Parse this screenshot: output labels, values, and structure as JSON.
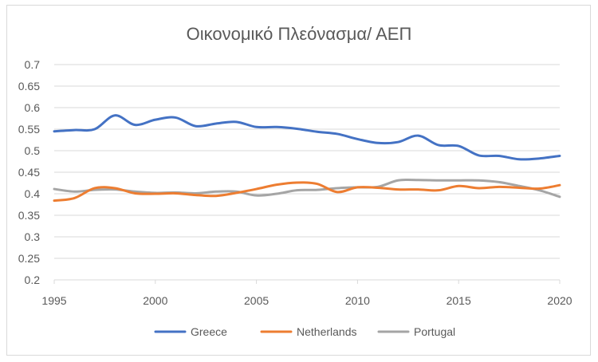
{
  "chart_data": {
    "type": "line",
    "title": "Οικονομικό Πλεόνασμα/ ΑΕΠ",
    "xlabel": "",
    "ylabel": "",
    "xlim": [
      1995,
      2020
    ],
    "ylim": [
      0.2,
      0.7
    ],
    "x_ticks": [
      "1995",
      "2000",
      "2005",
      "2010",
      "2015",
      "2020"
    ],
    "y_ticks": [
      "0.7",
      "0.65",
      "0.6",
      "0.55",
      "0.5",
      "0.45",
      "0.4",
      "0.35",
      "0.3",
      "0.25",
      "0.2"
    ],
    "grid": "horizontal",
    "legend_position": "bottom",
    "x": [
      1995,
      1996,
      1997,
      1998,
      1999,
      2000,
      2001,
      2002,
      2003,
      2004,
      2005,
      2006,
      2007,
      2008,
      2009,
      2010,
      2011,
      2012,
      2013,
      2014,
      2015,
      2016,
      2017,
      2018,
      2019,
      2020
    ],
    "series": [
      {
        "name": "Greece",
        "color": "#4472c4",
        "values": [
          0.545,
          0.548,
          0.55,
          0.582,
          0.56,
          0.572,
          0.577,
          0.557,
          0.563,
          0.567,
          0.555,
          0.555,
          0.551,
          0.544,
          0.539,
          0.527,
          0.518,
          0.52,
          0.535,
          0.513,
          0.511,
          0.489,
          0.488,
          0.48,
          0.482,
          0.488
        ]
      },
      {
        "name": "Netherlands",
        "color": "#ed7d31",
        "values": [
          0.384,
          0.39,
          0.413,
          0.413,
          0.401,
          0.4,
          0.401,
          0.397,
          0.395,
          0.402,
          0.411,
          0.421,
          0.426,
          0.423,
          0.404,
          0.415,
          0.414,
          0.41,
          0.41,
          0.408,
          0.418,
          0.413,
          0.416,
          0.414,
          0.412,
          0.42
        ]
      },
      {
        "name": "Portugal",
        "color": "#a5a5a5",
        "values": [
          0.411,
          0.405,
          0.409,
          0.41,
          0.405,
          0.402,
          0.403,
          0.401,
          0.405,
          0.405,
          0.396,
          0.4,
          0.408,
          0.409,
          0.413,
          0.415,
          0.416,
          0.431,
          0.432,
          0.431,
          0.431,
          0.431,
          0.427,
          0.418,
          0.408,
          0.393
        ]
      }
    ]
  }
}
